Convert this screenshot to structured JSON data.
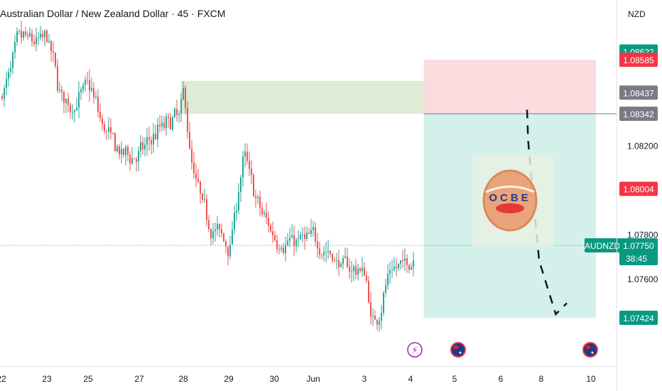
{
  "header": {
    "title": "Australian Dollar / New Zealand Dollar · 45 · FXCM",
    "currency": "NZD"
  },
  "colors": {
    "up": "#26a69a",
    "down": "#ef5350",
    "profit_zone": "#cfeee8",
    "stop_zone": "#fcd9dc",
    "supply_zone": "#d8ead0",
    "tag_green": "#089981",
    "tag_red": "#f23645",
    "tag_gray": "#787b86"
  },
  "price_labels": [
    {
      "value": 1.08622,
      "text": "1.08622",
      "style": "green"
    },
    {
      "value": 1.08585,
      "text": "1.08585",
      "style": "red"
    },
    {
      "value": 1.08437,
      "text": "1.08437",
      "style": "gray"
    },
    {
      "value": 1.08342,
      "text": "1.08342",
      "style": "gray"
    },
    {
      "value": 1.08004,
      "text": "1.08004",
      "style": "red"
    },
    {
      "value": 1.07424,
      "text": "1.07424",
      "style": "green"
    }
  ],
  "current_price": {
    "symbol": "AUDNZD",
    "value": 1.0775,
    "text": "1.07750",
    "countdown": "38:45"
  },
  "events": [
    {
      "name": "flash-event",
      "x": 4.1,
      "glyph": "⚡"
    },
    {
      "name": "flag-event",
      "x": 5,
      "glyph": ""
    },
    {
      "name": "flag-event",
      "x": 10,
      "glyph": ""
    }
  ],
  "logo": {
    "text": "OCBE"
  },
  "chart_data": {
    "type": "candlestick",
    "title": "Australian Dollar / New Zealand Dollar · 45 · FXCM",
    "ylim": [
      1.0708,
      1.0874
    ],
    "xlim": [
      -0.95,
      10.8
    ],
    "yticks": [
      1.078,
      1.076
    ],
    "ytick_labels": [
      "1.07800",
      "1.07600"
    ],
    "xticks": [
      {
        "x": -0.95,
        "label": "22"
      },
      {
        "x": 0,
        "label": "23"
      },
      {
        "x": 0.95,
        "label": "25"
      },
      {
        "x": 2,
        "label": "27"
      },
      {
        "x": 3,
        "label": "28"
      },
      {
        "x": 4,
        "label": "29"
      },
      {
        "x": 5,
        "label": "30"
      },
      {
        "x": 6,
        "label": "Jun"
      },
      {
        "x": 7,
        "label": "3"
      },
      {
        "x": 8,
        "label": "4"
      },
      {
        "x": 9,
        "label": "5"
      },
      {
        "x": 10,
        "label": "6"
      },
      {
        "x": 11,
        "label": "8"
      },
      {
        "x": 12,
        "label": "10"
      }
    ],
    "trend_path": [
      {
        "x": 1.08,
        "y": 1.0836
      },
      {
        "x": 1.1,
        "y": 1.0822
      },
      {
        "x": 1.2,
        "y": 1.0794
      },
      {
        "x": 1.3,
        "y": 1.0768
      },
      {
        "x": 1.6,
        "y": 1.0744
      },
      {
        "x": 1.8,
        "y": 1.0749
      }
    ],
    "zones": {
      "supply": {
        "x0": 2.95,
        "x1": 8.45,
        "y0": 1.08342,
        "y1": 1.0849
      },
      "stop": {
        "x0": 8.3,
        "x1": 12.1,
        "y0": 1.08342,
        "y1": 1.08585
      },
      "target": {
        "x0": 8.3,
        "x1": 12.1,
        "y0": 1.07424,
        "y1": 1.08342
      }
    },
    "anchors": [
      {
        "x": -0.95,
        "y": 1.0842
      },
      {
        "x": -0.6,
        "y": 1.0869
      },
      {
        "x": -0.3,
        "y": 1.0866
      },
      {
        "x": 0.0,
        "y": 1.0868
      },
      {
        "x": 0.25,
        "y": 1.0844
      },
      {
        "x": 0.5,
        "y": 1.0836
      },
      {
        "x": 0.95,
        "y": 1.0848
      },
      {
        "x": 1.2,
        "y": 1.0829
      },
      {
        "x": 1.6,
        "y": 1.0815
      },
      {
        "x": 2.0,
        "y": 1.0816
      },
      {
        "x": 2.4,
        "y": 1.0827
      },
      {
        "x": 2.9,
        "y": 1.0834
      },
      {
        "x": 3.0,
        "y": 1.0846
      },
      {
        "x": 3.15,
        "y": 1.0808
      },
      {
        "x": 3.5,
        "y": 1.0786
      },
      {
        "x": 4.0,
        "y": 1.0774
      },
      {
        "x": 4.3,
        "y": 1.0818
      },
      {
        "x": 4.6,
        "y": 1.0792
      },
      {
        "x": 5.0,
        "y": 1.0778
      },
      {
        "x": 5.3,
        "y": 1.0776
      },
      {
        "x": 6.0,
        "y": 1.0778
      },
      {
        "x": 6.5,
        "y": 1.0766
      },
      {
        "x": 7.0,
        "y": 1.0763
      },
      {
        "x": 7.15,
        "y": 1.0735
      },
      {
        "x": 7.5,
        "y": 1.0763
      },
      {
        "x": 8.0,
        "y": 1.0768
      },
      {
        "x": 8.1,
        "y": 1.0775
      }
    ]
  }
}
